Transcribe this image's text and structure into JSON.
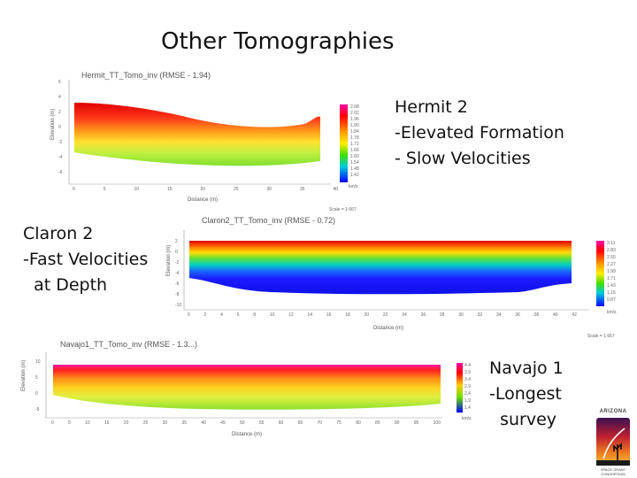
{
  "slide": {
    "title": "Other Tomographies"
  },
  "captions": {
    "hermit": "Hermit 2\n-Elevated Formation\n- Slow Velocities",
    "claron": "Claron 2\n-Fast Velocities\n  at Depth",
    "navajo": "Navajo 1\n-Longest\n  survey"
  },
  "panels": {
    "hermit": {
      "title": "Hermit_TT_Tomo_inv (RMSE - 1.94)",
      "xlabel": "Distance (m)",
      "ylabel": "Elevation (m)",
      "footer": "Scale = 1:667",
      "legend_unit": "km/s",
      "legend_values": [
        "2.08",
        "2.02",
        "1.96",
        "1.90",
        "1.84",
        "1.78",
        "1.72",
        "1.66",
        "1.60",
        "1.54",
        "1.48",
        "1.42"
      ],
      "x_ticks": [
        "0",
        "5",
        "10",
        "15",
        "20",
        "25",
        "30",
        "35",
        "40"
      ],
      "y_ticks": [
        "6",
        "4",
        "2",
        "0",
        "-2",
        "-4",
        "-6"
      ]
    },
    "claron": {
      "title": "Claron2_TT_Tomo_inv (RMSE - 0.72)",
      "xlabel": "Distance (m)",
      "ylabel": "Elevation (m)",
      "footer": "Scale = 1:667",
      "legend_unit": "km/s",
      "legend_values": [
        "3.11",
        "2.83",
        "2.55",
        "2.27",
        "1.99",
        "1.71",
        "1.43",
        "1.15",
        "0.87"
      ],
      "x_ticks": [
        "0",
        "2",
        "4",
        "6",
        "8",
        "10",
        "12",
        "14",
        "16",
        "18",
        "20",
        "22",
        "24",
        "26",
        "28",
        "30",
        "32",
        "34",
        "36",
        "38",
        "40",
        "42"
      ],
      "y_ticks": [
        "2",
        "0",
        "-2",
        "-4",
        "-6",
        "-8",
        "-10"
      ]
    },
    "navajo": {
      "title": "Navajo1_TT_Tomo_inv (RMSE - 1.3...)",
      "xlabel": "Distance (m)",
      "ylabel": "Elevation (m)",
      "legend_unit": "km/s",
      "legend_values": [
        "4.4",
        "3.9",
        "3.4",
        "2.9",
        "2.4",
        "1.9",
        "1.4"
      ],
      "x_ticks": [
        "0",
        "5",
        "10",
        "15",
        "20",
        "25",
        "30",
        "35",
        "40",
        "45",
        "50",
        "55",
        "60",
        "65",
        "70",
        "75",
        "80",
        "85",
        "90",
        "95",
        "100"
      ],
      "y_ticks": [
        "10",
        "5",
        "0",
        "-5"
      ]
    }
  },
  "logo": {
    "top_text": "ARIZONA",
    "bottom_text": "SPACE GRANT CONSORTIUM"
  },
  "colors": {
    "vel_high": "#e60000",
    "vel_mid": "#ffe000",
    "vel_low": "#1a1aff"
  }
}
